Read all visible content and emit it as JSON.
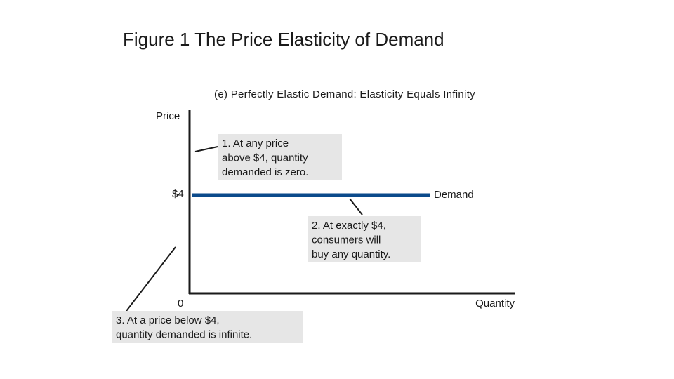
{
  "title": "Figure 1 The Price Elasticity of Demand",
  "subtitle": "(e) Perfectly Elastic Demand: Elasticity Equals Infinity",
  "y_axis_label": "Price",
  "x_axis_label": "Quantity",
  "price_label": "$4",
  "origin_label": "0",
  "curve_label": "Demand",
  "annotations": [
    {
      "lines": [
        "1. At any price",
        "above $4, quantity",
        "demanded is zero."
      ]
    },
    {
      "lines": [
        "2. At exactly $4,",
        "consumers will",
        "buy any quantity."
      ]
    },
    {
      "lines": [
        "3. At a price below $4,",
        "quantity demanded is infinite."
      ]
    }
  ]
}
